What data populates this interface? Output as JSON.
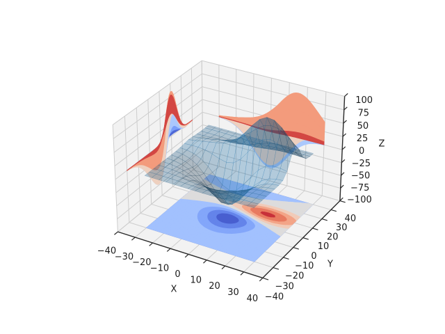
{
  "chart_data": {
    "type": "3d-surface-with-contour-projections",
    "title": "",
    "axes": {
      "xlabel": "X",
      "ylabel": "Y",
      "zlabel": "Z",
      "xlim": [
        -40,
        40
      ],
      "ylim": [
        -40,
        40
      ],
      "zlim": [
        -100,
        100
      ],
      "xticks": [
        -40,
        -30,
        -20,
        -10,
        0,
        10,
        20,
        30,
        40
      ],
      "xtick_labels": [
        "−40",
        "−30",
        "−20",
        "−10",
        "0",
        "10",
        "20",
        "30",
        "40"
      ],
      "yticks": [
        -40,
        -30,
        -20,
        -10,
        0,
        10,
        20,
        30,
        40
      ],
      "ytick_labels": [
        "−40",
        "−30",
        "−20",
        "−10",
        "0",
        "10",
        "20",
        "30",
        "40"
      ],
      "zticks": [
        -100,
        -75,
        -50,
        -25,
        0,
        25,
        50,
        75,
        100
      ],
      "ztick_labels": [
        "−100",
        "−75",
        "−50",
        "−25",
        "0",
        "25",
        "50",
        "75",
        "100"
      ],
      "grid": true
    },
    "view": {
      "elev": 30,
      "azim": -60,
      "dist": 10,
      "box_aspect": [
        4,
        4,
        3
      ]
    },
    "function": "Z(x,y) = 500*( exp(-(((x/10-1)/1.5)^2+((y/10-1)/0.5)^2)/2)/(2*pi*0.75) - exp(-((x/10)^2+(y/10)^2)/2)/(2*pi) )  (matplotlib axes3d.get_test_data)",
    "data_domain": [
      -30,
      30
    ],
    "surface": {
      "color": "#1f77b4",
      "alpha": 0.3,
      "stride": 4
    },
    "colormap_name": "coolwarm",
    "colormap_stops": [
      [
        0.0,
        "#3b4cc0"
      ],
      [
        0.125,
        "#5977e3"
      ],
      [
        0.25,
        "#7b9ff9"
      ],
      [
        0.375,
        "#9ebeff"
      ],
      [
        0.4375,
        "#b2cdfb"
      ],
      [
        0.5,
        "#dddcdc"
      ],
      [
        0.5625,
        "#ecd3c5"
      ],
      [
        0.625,
        "#f2c9b4"
      ],
      [
        0.75,
        "#f39b7c"
      ],
      [
        0.875,
        "#e26952"
      ],
      [
        1.0,
        "#b40426"
      ]
    ],
    "contours": {
      "floor": {
        "zdir": "z",
        "offset": -100,
        "levels": [
          -80,
          -60,
          -40,
          -20,
          0,
          20,
          40,
          60,
          80,
          100
        ]
      },
      "wall_x": {
        "zdir": "x",
        "offset": -40,
        "levels": [
          -30,
          -20,
          -10,
          0,
          10,
          20,
          30
        ]
      },
      "wall_y": {
        "zdir": "y",
        "offset": 40,
        "levels": [
          -30,
          -20,
          -10,
          0,
          10,
          20,
          30
        ]
      }
    },
    "style": {
      "pane_color": "#f2f2f2",
      "grid_color": "#cdcdcd",
      "axis_line_color": "#2a2a2a",
      "text_color": "#1a1a1a",
      "background": "#ffffff"
    }
  }
}
